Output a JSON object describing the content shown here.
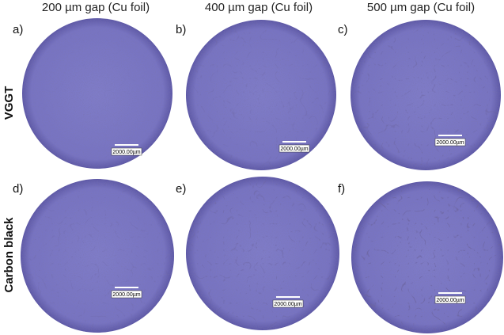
{
  "columns": [
    "200 µm gap (Cu foil)",
    "400 µm gap (Cu foil)",
    "500 µm gap (Cu foil)"
  ],
  "rows": [
    {
      "label": "VGGT",
      "panels": [
        {
          "label": "a)",
          "scale_bar": "2000.00µm"
        },
        {
          "label": "b)",
          "scale_bar": "2000.00µm"
        },
        {
          "label": "c)",
          "scale_bar": "2000.00µm"
        }
      ]
    },
    {
      "label": "Carbon black",
      "panels": [
        {
          "label": "d)",
          "scale_bar": "2000.00µm"
        },
        {
          "label": "e)",
          "scale_bar": "2000.00µm"
        },
        {
          "label": "f)",
          "scale_bar": "2000.00µm"
        }
      ]
    }
  ]
}
